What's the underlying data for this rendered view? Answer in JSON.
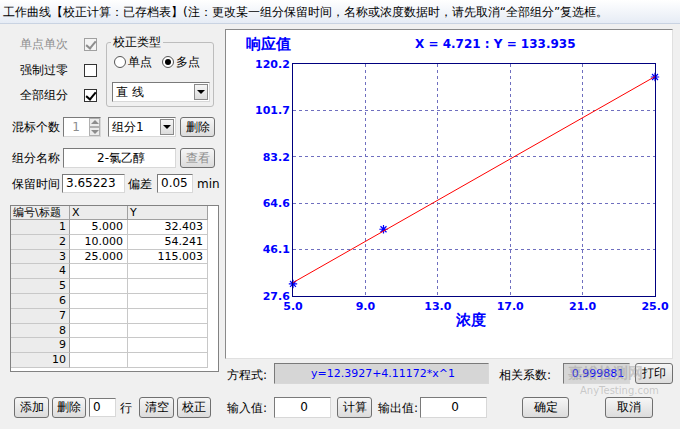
{
  "window_title": "工作曲线【校正计算：已存档表】(注：更改某一组分保留时间，名称或浓度数据时，请先取消“全部组分”复选框。",
  "options": {
    "single_point_once": {
      "label": "单点单次",
      "checked": true,
      "enabled": false
    },
    "force_zero": {
      "label": "强制过零",
      "checked": false,
      "enabled": true
    },
    "all_components": {
      "label": "全部组分",
      "checked": true,
      "enabled": true
    }
  },
  "calibration_type": {
    "label": "校正类型",
    "options": [
      "单点",
      "多点"
    ],
    "selected": "多点",
    "curve": "直    线"
  },
  "mix_count": {
    "label": "混标个数",
    "value": "1",
    "component": "组分1",
    "delete": "删除"
  },
  "component_name": {
    "label": "组分名称",
    "value": "2-氯乙醇",
    "view": "查看"
  },
  "retention": {
    "label": "保留时间",
    "value": "3.65223",
    "deviation_label": "偏差",
    "deviation": "0.05",
    "unit": "min"
  },
  "table": {
    "header": [
      "编号\\标题",
      "X",
      "Y"
    ],
    "row_numbers": [
      1,
      2,
      3,
      4,
      5,
      6,
      7,
      8,
      9,
      10
    ],
    "rows": [
      [
        "5.000",
        "32.403"
      ],
      [
        "10.000",
        "54.241"
      ],
      [
        "25.000",
        "115.003"
      ]
    ]
  },
  "table_buttons": {
    "add": "添加",
    "delete": "删除",
    "row_count": "0",
    "row_unit": "行",
    "clear": "清空",
    "calibrate": "校正"
  },
  "chart_data": {
    "type": "scatter",
    "y_label": "响应值",
    "x_label": "浓度",
    "annotation": "X = 4.721 : Y = 133.935",
    "xlim": [
      5,
      25
    ],
    "ylim": [
      27.6,
      120.2
    ],
    "xticks": [
      {
        "value": 5,
        "label": "5.0"
      },
      {
        "value": 9,
        "label": "9.0"
      },
      {
        "value": 13,
        "label": "13.0"
      },
      {
        "value": 17,
        "label": "17.0"
      },
      {
        "value": 21,
        "label": "21.0"
      },
      {
        "value": 25,
        "label": "25.0"
      }
    ],
    "yticks": [
      27.6,
      {
        "value": 46.12,
        "label": "46.1"
      },
      {
        "value": 64.64,
        "label": "64.6"
      },
      {
        "value": 83.16,
        "label": "83.2"
      },
      {
        "value": 101.68,
        "label": "101.7"
      },
      120.2
    ],
    "grid": true,
    "series": [
      {
        "type": "scatter",
        "marker": "asterisk",
        "color": "#0000ff",
        "x": [
          5,
          10,
          25
        ],
        "values": [
          32.403,
          54.241,
          115.003
        ]
      },
      {
        "type": "line",
        "line_style": "solid",
        "color": "#ff0000",
        "x": [
          5,
          25
        ],
        "values": [
          32.95,
          115.19
        ]
      }
    ]
  },
  "equation": {
    "label": "方程式:",
    "value": "y=12.3927+4.11172*x^1"
  },
  "correlation": {
    "label": "相关系数:",
    "value": "0.999881"
  },
  "print": "打印",
  "input": {
    "label": "输入值:",
    "value": "0",
    "compute": "计算"
  },
  "output": {
    "label": "输出值:",
    "value": "0"
  },
  "ok": "确定",
  "cancel": "取消",
  "watermark": [
    "嘉峪检测网",
    "AnyTesting.com"
  ]
}
